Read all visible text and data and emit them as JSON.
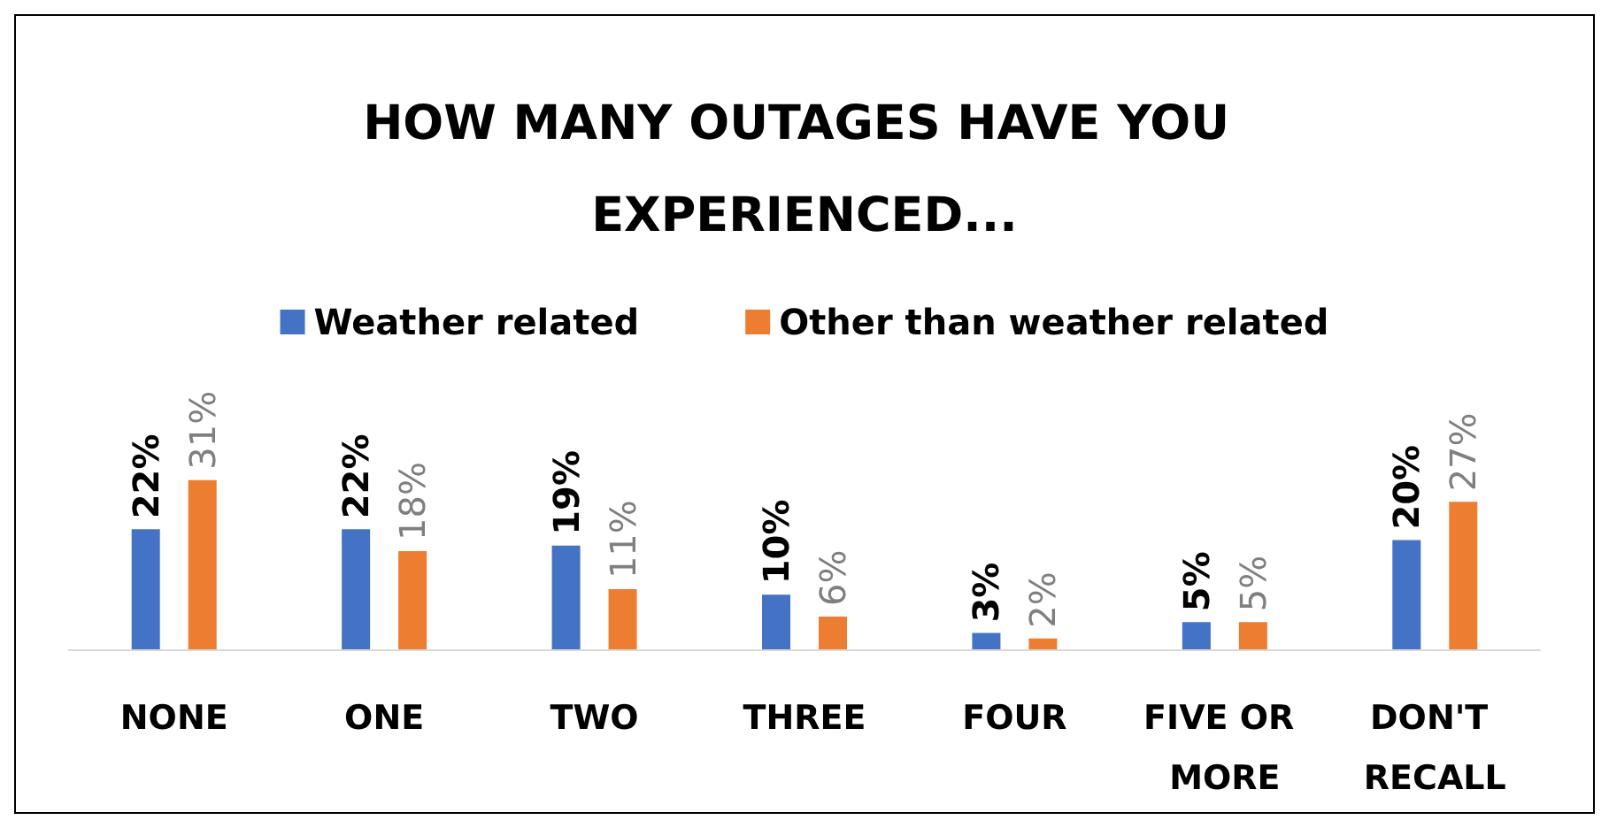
{
  "chart_data": {
    "type": "bar",
    "title": "HOW MANY OUTAGES HAVE YOU EXPERIENCED...",
    "categories": [
      "NONE",
      "ONE",
      "TWO",
      "THREE",
      "FOUR",
      "FIVE OR MORE",
      "DON'T RECALL"
    ],
    "legend": "top",
    "series": [
      {
        "name": "Weather related",
        "color": "#4472c4",
        "values": [
          22,
          22,
          19,
          10,
          3,
          5,
          20
        ],
        "value_labels": [
          "22%",
          "22%",
          "19%",
          "10%",
          "3%",
          "5%",
          "20%"
        ]
      },
      {
        "name": "Other than weather related",
        "color": "#ed7d31",
        "values": [
          31,
          18,
          11,
          6,
          2,
          5,
          27
        ],
        "value_labels": [
          "31%",
          "18%",
          "11%",
          "6%",
          "2%",
          "5%",
          "27%"
        ]
      }
    ]
  }
}
